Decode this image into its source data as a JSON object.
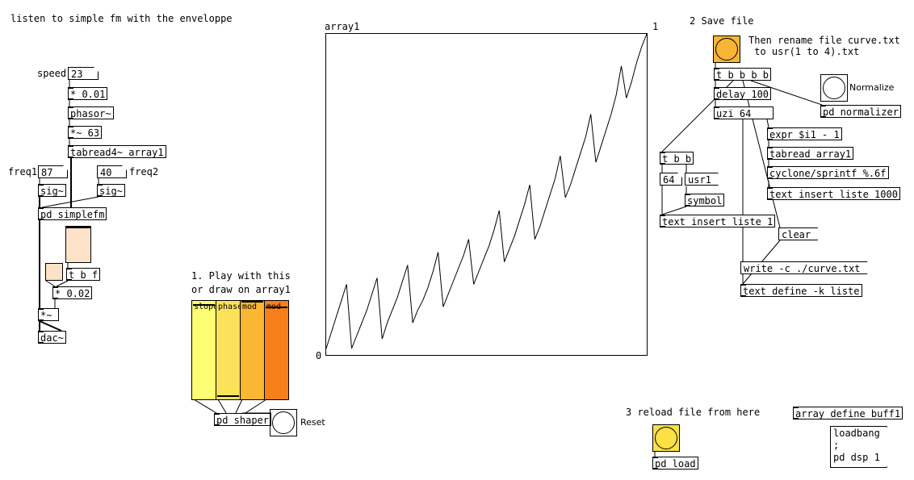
{
  "comments": {
    "intro": "listen to simple fm with the enveloppe",
    "speed": "speed",
    "freq1": "freq1",
    "freq2": "freq2",
    "play": "1. Play with this\nor draw on array1",
    "save": "2 Save file",
    "rename": "Then rename file curve.txt\n to usr(1 to 4).txt",
    "normalize": "Normalize",
    "reload": "3 reload file from here",
    "reset": "Reset"
  },
  "numbers": {
    "speed": "23",
    "freq1": "87",
    "freq2": "40",
    "count": "64"
  },
  "objects": {
    "mul001": "* 0.01",
    "phasor": "phasor~",
    "mul63": "*~ 63",
    "tabread4": "tabread4~ array1",
    "sig1": "sig~",
    "sig2": "sig~",
    "simplefm": "pd simplefm",
    "tbf": "t b f",
    "mul002": "* 0.02",
    "mulsig": "*~",
    "dac": "dac~",
    "shaper": "pd shaper",
    "tbbbb": "t b b b b",
    "delay": "delay 100",
    "uzi": "uzi 64",
    "normalizer": "pd normalizer",
    "expr": "expr $i1 - 1",
    "tabread": "tabread array1",
    "sprintf": "cyclone/sprintf %.6f",
    "insert1000": "text insert liste 1000",
    "tbb": "t b b",
    "symbol": "symbol",
    "insert1": "text insert liste 1",
    "define": "text define -k liste",
    "load": "pd load",
    "arraydef": "array define buff1"
  },
  "messages": {
    "usr1": "usr1",
    "clear": "clear",
    "write": "write -c ./curve.txt",
    "loadbang": "loadbang\n;\npd dsp 1"
  },
  "sliders": [
    {
      "label": "slope",
      "color": "#fdfd74",
      "value": 0.97
    },
    {
      "label": "phasemod",
      "color": "#fce15a",
      "value": 0.01
    },
    {
      "label": "mod",
      "color": "#fbb732",
      "value": 1.0
    },
    {
      "label": "mod",
      "color": "#f8801a",
      "value": 0.94
    }
  ],
  "colors": {
    "bang_save": "#f8b535",
    "bang_load": "#fce044",
    "number_fill": "#fce2c8"
  },
  "array": {
    "name": "array1",
    "ymax_label": "1",
    "ymin_label": "0"
  },
  "chart_data": {
    "type": "line",
    "title": "array1",
    "xlabel": "",
    "ylabel": "",
    "ylim": [
      0,
      1
    ],
    "xlim": [
      0,
      64
    ],
    "grid": false,
    "series": [
      {
        "values": [
          0.02,
          0.07,
          0.12,
          0.17,
          0.22,
          0.02,
          0.06,
          0.1,
          0.14,
          0.19,
          0.24,
          0.05,
          0.1,
          0.14,
          0.18,
          0.23,
          0.28,
          0.1,
          0.14,
          0.17,
          0.21,
          0.26,
          0.32,
          0.15,
          0.19,
          0.23,
          0.27,
          0.31,
          0.36,
          0.22,
          0.26,
          0.3,
          0.34,
          0.39,
          0.45,
          0.29,
          0.33,
          0.37,
          0.42,
          0.47,
          0.53,
          0.36,
          0.4,
          0.45,
          0.5,
          0.55,
          0.62,
          0.49,
          0.53,
          0.58,
          0.63,
          0.68,
          0.75,
          0.6,
          0.65,
          0.7,
          0.75,
          0.81,
          0.9,
          0.8,
          0.85,
          0.91,
          0.96,
          1.0
        ]
      }
    ]
  }
}
